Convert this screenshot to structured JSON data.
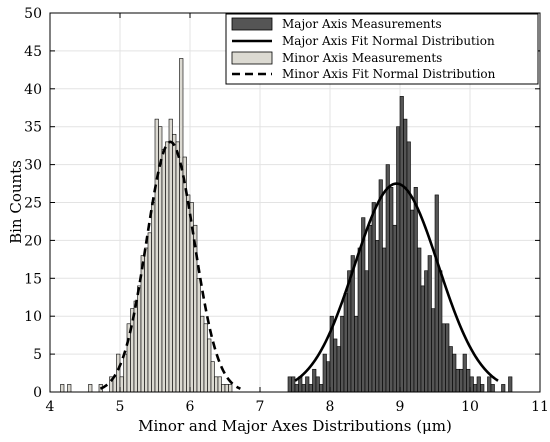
{
  "chart_data": {
    "type": "bar",
    "xlabel": "Minor and Major Axes Distributions (μm)",
    "ylabel": "Bin Counts",
    "xlim": [
      4,
      11
    ],
    "ylim": [
      0,
      50
    ],
    "xticks": [
      4,
      5,
      6,
      7,
      8,
      9,
      10,
      11
    ],
    "yticks": [
      0,
      5,
      10,
      15,
      20,
      25,
      30,
      35,
      40,
      45,
      50
    ],
    "grid": true,
    "legend_position": "top-right",
    "bin_width": 0.05,
    "series": [
      {
        "name": "Major Axis Measurements",
        "kind": "histogram",
        "color": "#555555",
        "bins": [
          {
            "x": 7.4,
            "count": 2
          },
          {
            "x": 7.45,
            "count": 2
          },
          {
            "x": 7.5,
            "count": 1
          },
          {
            "x": 7.55,
            "count": 2
          },
          {
            "x": 7.6,
            "count": 1
          },
          {
            "x": 7.65,
            "count": 2
          },
          {
            "x": 7.7,
            "count": 1
          },
          {
            "x": 7.75,
            "count": 3
          },
          {
            "x": 7.8,
            "count": 2
          },
          {
            "x": 7.85,
            "count": 1
          },
          {
            "x": 7.9,
            "count": 5
          },
          {
            "x": 7.95,
            "count": 4
          },
          {
            "x": 8.0,
            "count": 10
          },
          {
            "x": 8.05,
            "count": 7
          },
          {
            "x": 8.1,
            "count": 6
          },
          {
            "x": 8.15,
            "count": 10
          },
          {
            "x": 8.2,
            "count": 13
          },
          {
            "x": 8.25,
            "count": 16
          },
          {
            "x": 8.3,
            "count": 18
          },
          {
            "x": 8.35,
            "count": 10
          },
          {
            "x": 8.4,
            "count": 19
          },
          {
            "x": 8.45,
            "count": 23
          },
          {
            "x": 8.5,
            "count": 16
          },
          {
            "x": 8.55,
            "count": 22
          },
          {
            "x": 8.6,
            "count": 25
          },
          {
            "x": 8.65,
            "count": 20
          },
          {
            "x": 8.7,
            "count": 28
          },
          {
            "x": 8.75,
            "count": 19
          },
          {
            "x": 8.8,
            "count": 30
          },
          {
            "x": 8.85,
            "count": 27
          },
          {
            "x": 8.9,
            "count": 22
          },
          {
            "x": 8.95,
            "count": 35
          },
          {
            "x": 9.0,
            "count": 39
          },
          {
            "x": 9.05,
            "count": 36
          },
          {
            "x": 9.1,
            "count": 33
          },
          {
            "x": 9.15,
            "count": 24
          },
          {
            "x": 9.2,
            "count": 27
          },
          {
            "x": 9.25,
            "count": 19
          },
          {
            "x": 9.3,
            "count": 14
          },
          {
            "x": 9.35,
            "count": 16
          },
          {
            "x": 9.4,
            "count": 18
          },
          {
            "x": 9.45,
            "count": 11
          },
          {
            "x": 9.5,
            "count": 26
          },
          {
            "x": 9.55,
            "count": 16
          },
          {
            "x": 9.6,
            "count": 9
          },
          {
            "x": 9.65,
            "count": 9
          },
          {
            "x": 9.7,
            "count": 6
          },
          {
            "x": 9.75,
            "count": 5
          },
          {
            "x": 9.8,
            "count": 3
          },
          {
            "x": 9.85,
            "count": 3
          },
          {
            "x": 9.9,
            "count": 5
          },
          {
            "x": 9.95,
            "count": 3
          },
          {
            "x": 10.0,
            "count": 2
          },
          {
            "x": 10.05,
            "count": 1
          },
          {
            "x": 10.1,
            "count": 2
          },
          {
            "x": 10.15,
            "count": 1
          },
          {
            "x": 10.25,
            "count": 2
          },
          {
            "x": 10.3,
            "count": 1
          },
          {
            "x": 10.45,
            "count": 1
          },
          {
            "x": 10.55,
            "count": 2
          }
        ]
      },
      {
        "name": "Major Axis Fit Normal Distribution",
        "kind": "normal_fit",
        "color": "#000000",
        "dash": "solid",
        "mean": 8.95,
        "std": 0.6,
        "peak": 27.5,
        "x_range": [
          7.5,
          10.4
        ]
      },
      {
        "name": "Minor Axis Measurements",
        "kind": "histogram",
        "color": "#dcdad2",
        "bins": [
          {
            "x": 4.15,
            "count": 1
          },
          {
            "x": 4.25,
            "count": 1
          },
          {
            "x": 4.55,
            "count": 1
          },
          {
            "x": 4.7,
            "count": 1
          },
          {
            "x": 4.85,
            "count": 2
          },
          {
            "x": 4.9,
            "count": 2
          },
          {
            "x": 4.95,
            "count": 5
          },
          {
            "x": 5.0,
            "count": 2
          },
          {
            "x": 5.05,
            "count": 5
          },
          {
            "x": 5.1,
            "count": 9
          },
          {
            "x": 5.15,
            "count": 11
          },
          {
            "x": 5.2,
            "count": 12
          },
          {
            "x": 5.25,
            "count": 14
          },
          {
            "x": 5.3,
            "count": 18
          },
          {
            "x": 5.35,
            "count": 19
          },
          {
            "x": 5.4,
            "count": 21
          },
          {
            "x": 5.45,
            "count": 25
          },
          {
            "x": 5.5,
            "count": 36
          },
          {
            "x": 5.55,
            "count": 35
          },
          {
            "x": 5.6,
            "count": 32
          },
          {
            "x": 5.65,
            "count": 33
          },
          {
            "x": 5.7,
            "count": 36
          },
          {
            "x": 5.75,
            "count": 34
          },
          {
            "x": 5.8,
            "count": 33
          },
          {
            "x": 5.85,
            "count": 44
          },
          {
            "x": 5.9,
            "count": 31
          },
          {
            "x": 5.95,
            "count": 26
          },
          {
            "x": 6.0,
            "count": 25
          },
          {
            "x": 6.05,
            "count": 22
          },
          {
            "x": 6.1,
            "count": 15
          },
          {
            "x": 6.15,
            "count": 10
          },
          {
            "x": 6.2,
            "count": 9
          },
          {
            "x": 6.25,
            "count": 7
          },
          {
            "x": 6.3,
            "count": 4
          },
          {
            "x": 6.35,
            "count": 2
          },
          {
            "x": 6.4,
            "count": 2
          },
          {
            "x": 6.45,
            "count": 1
          },
          {
            "x": 6.5,
            "count": 1
          },
          {
            "x": 6.55,
            "count": 1
          }
        ]
      },
      {
        "name": "Minor Axis Fit Normal Distribution",
        "kind": "normal_fit",
        "color": "#000000",
        "dash": "dashed",
        "mean": 5.72,
        "std": 0.34,
        "peak": 33,
        "x_range": [
          4.72,
          6.72
        ]
      }
    ]
  }
}
